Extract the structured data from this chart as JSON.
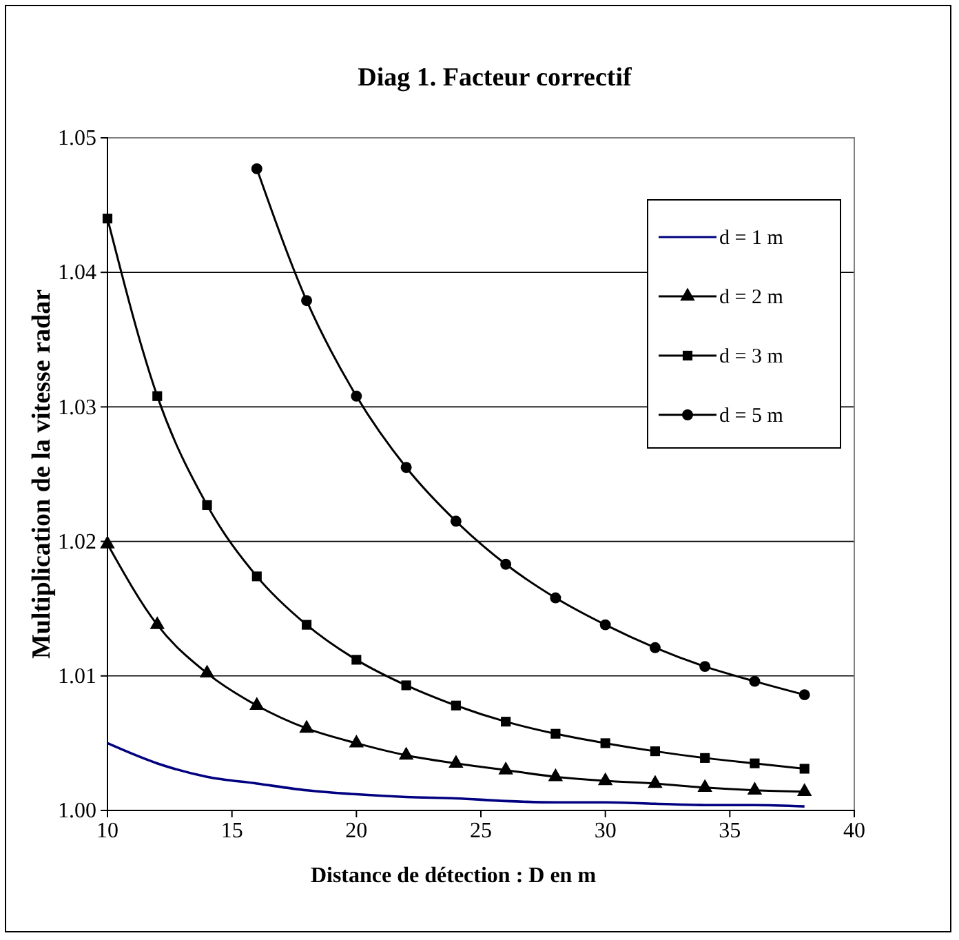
{
  "chart_data": {
    "type": "line",
    "title": "Diag 1. Facteur correctif",
    "xlabel": "Distance de détection  : D en m",
    "ylabel": "Multiplication de la vitesse radar",
    "x": [
      10,
      12,
      14,
      16,
      18,
      20,
      22,
      24,
      26,
      28,
      30,
      32,
      34,
      36,
      38
    ],
    "xlim": [
      10,
      40
    ],
    "xticks": [
      10,
      15,
      20,
      25,
      30,
      35,
      40
    ],
    "ylim": [
      1.0,
      1.05
    ],
    "yticks": [
      {
        "value": 1.0,
        "label": "1.00"
      },
      {
        "value": 1.01,
        "label": "1.01"
      },
      {
        "value": 1.02,
        "label": "1.02"
      },
      {
        "value": 1.03,
        "label": "1.03"
      },
      {
        "value": 1.04,
        "label": "1.04"
      },
      {
        "value": 1.05,
        "label": "1.05"
      }
    ],
    "grid": "y",
    "legend": "top right",
    "line_style": "solid",
    "series": [
      {
        "name": "d = 1 m",
        "color": "#000080",
        "marker": "none",
        "values": [
          1.005,
          1.0035,
          1.0025,
          1.002,
          1.0015,
          1.0012,
          1.001,
          1.0009,
          1.0007,
          1.0006,
          1.0006,
          1.0005,
          1.0004,
          1.0004,
          1.0003
        ]
      },
      {
        "name": "d = 2 m",
        "color": "#000000",
        "marker": "triangle",
        "values": [
          1.0198,
          1.0138,
          1.0102,
          1.0078,
          1.0061,
          1.005,
          1.0041,
          1.0035,
          1.003,
          1.0025,
          1.0022,
          1.002,
          1.0017,
          1.0015,
          1.0014
        ]
      },
      {
        "name": "d = 3 m",
        "color": "#000000",
        "marker": "square",
        "values": [
          1.044,
          1.0308,
          1.0227,
          1.0174,
          1.0138,
          1.0112,
          1.0093,
          1.0078,
          1.0066,
          1.0057,
          1.005,
          1.0044,
          1.0039,
          1.0035,
          1.0031
        ]
      },
      {
        "name": "d = 5 m",
        "color": "#000000",
        "marker": "circle",
        "x": [
          16,
          18,
          20,
          22,
          24,
          26,
          28,
          30,
          32,
          34,
          36,
          38
        ],
        "values": [
          1.0477,
          1.0379,
          1.0308,
          1.0255,
          1.0215,
          1.0183,
          1.0158,
          1.0138,
          1.0121,
          1.0107,
          1.0096,
          1.0086
        ]
      }
    ]
  }
}
